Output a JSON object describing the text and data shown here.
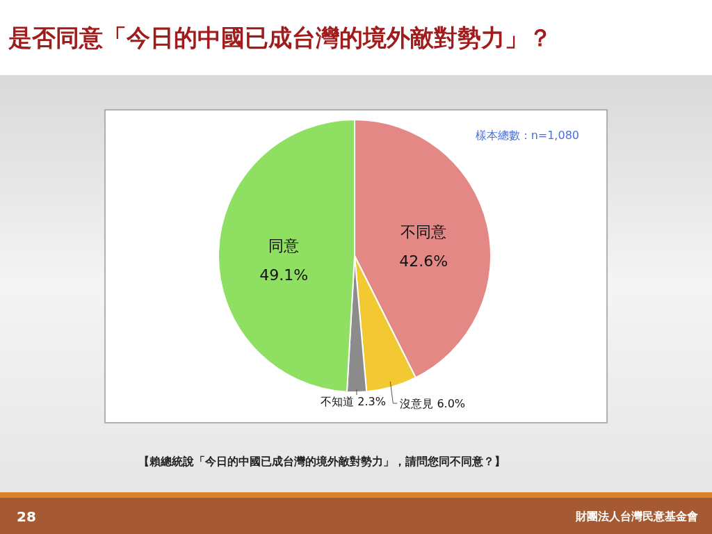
{
  "chart_data": {
    "type": "pie",
    "title": "是否同意「今日的中國已成台灣的境外敵對勢力」？",
    "categories": [
      "不同意",
      "沒意見",
      "不知道",
      "同意"
    ],
    "values": [
      42.6,
      6.0,
      2.3,
      49.1
    ],
    "value_labels": [
      "42.6%",
      "6.0%",
      "2.3%",
      "49.1%"
    ],
    "colors": [
      "#e38885",
      "#f2c933",
      "#8c8c8c",
      "#8fdf62"
    ],
    "legend": false,
    "annotations": [
      "樣本總數：n=1,080",
      "【賴總統說「今日的中國已成台灣的境外敵對勢力」，請問您同不同意？】",
      "28",
      "財團法人台灣民意基金會"
    ]
  }
}
